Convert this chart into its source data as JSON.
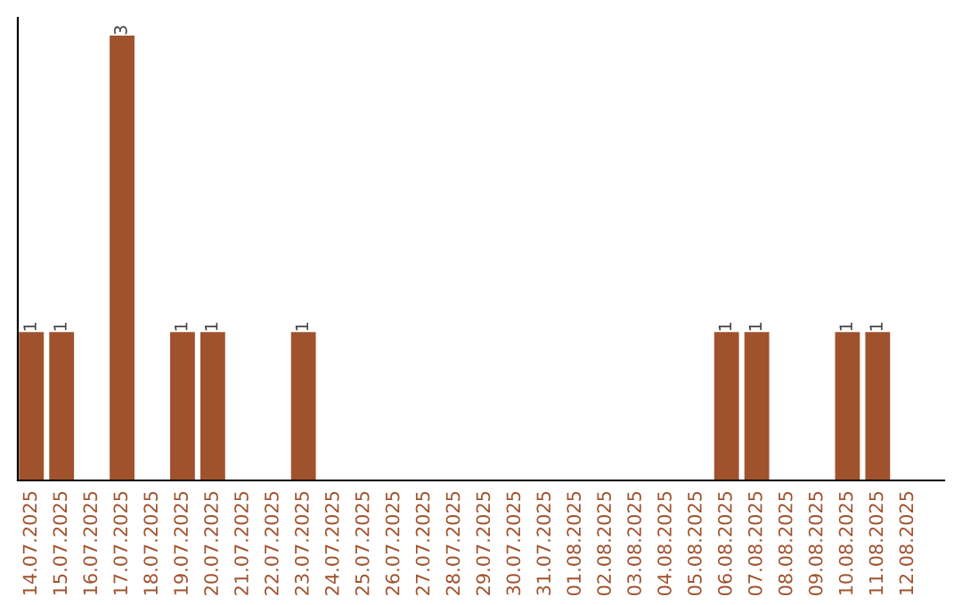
{
  "chart_data": {
    "type": "bar",
    "categories": [
      "14.07.2025",
      "15.07.2025",
      "16.07.2025",
      "17.07.2025",
      "18.07.2025",
      "19.07.2025",
      "20.07.2025",
      "21.07.2025",
      "22.07.2025",
      "23.07.2025",
      "24.07.2025",
      "25.07.2025",
      "26.07.2025",
      "27.07.2025",
      "28.07.2025",
      "29.07.2025",
      "30.07.2025",
      "31.07.2025",
      "01.08.2025",
      "02.08.2025",
      "03.08.2025",
      "04.08.2025",
      "05.08.2025",
      "06.08.2025",
      "07.08.2025",
      "08.08.2025",
      "09.08.2025",
      "10.08.2025",
      "11.08.2025",
      "12.08.2025"
    ],
    "values": [
      1,
      1,
      0,
      3,
      0,
      1,
      1,
      0,
      0,
      1,
      0,
      0,
      0,
      0,
      0,
      0,
      0,
      0,
      0,
      0,
      0,
      0,
      0,
      1,
      1,
      0,
      0,
      1,
      1,
      0
    ],
    "value_labels": [
      "1",
      "1",
      null,
      "3",
      null,
      "1",
      "1",
      null,
      null,
      "1",
      null,
      null,
      null,
      null,
      null,
      null,
      null,
      null,
      null,
      null,
      null,
      null,
      null,
      "1",
      "1",
      null,
      null,
      "1",
      "1",
      null
    ],
    "color": "#a0522d",
    "ylim": [
      0,
      3.12
    ],
    "tick_labels": "x",
    "grid": false,
    "legend": false
  }
}
